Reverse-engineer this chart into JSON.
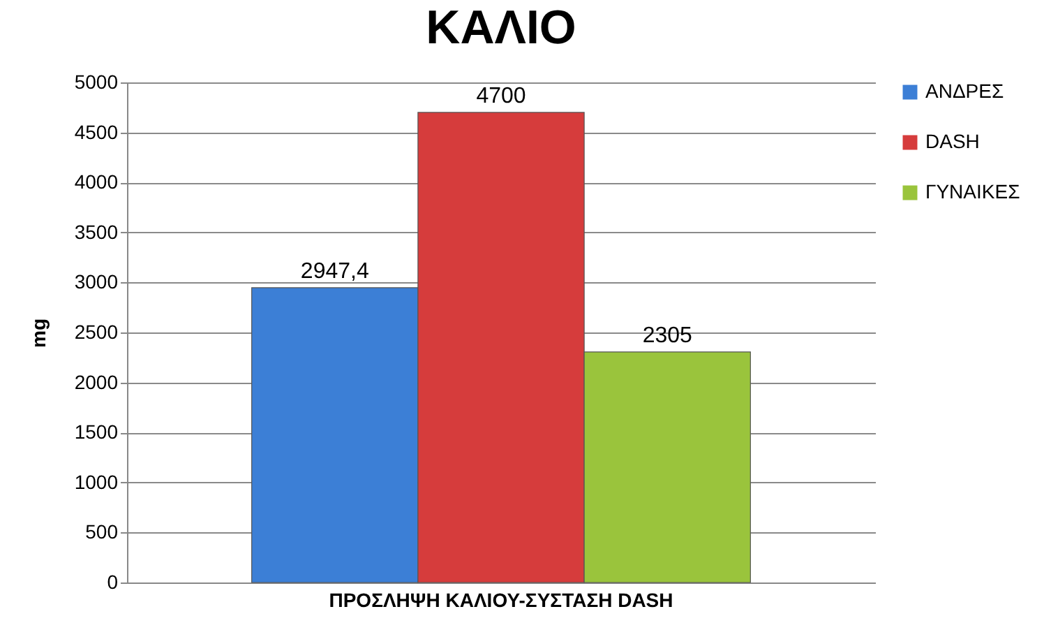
{
  "chart_data": {
    "type": "bar",
    "title": "ΚΑΛΙΟ",
    "ylabel": "mg",
    "categories": [
      "ΠΡΟΣΛΗΨΗ ΚΑΛΙΟΥ-ΣΥΣΤΑΣΗ DASH"
    ],
    "series": [
      {
        "name": "ΑΝΔΡΕΣ",
        "color": "#3c7fd6",
        "values": [
          2947.4
        ],
        "value_labels": [
          "2947,4"
        ]
      },
      {
        "name": "DASH",
        "color": "#d63c3c",
        "values": [
          4700
        ],
        "value_labels": [
          "4700"
        ]
      },
      {
        "name": "ΓΥΝΑΙΚΕΣ",
        "color": "#9ac43c",
        "values": [
          2305
        ],
        "value_labels": [
          "2305"
        ]
      }
    ],
    "ylim": [
      0,
      5000
    ],
    "yticks": [
      0,
      500,
      1000,
      1500,
      2000,
      2500,
      3000,
      3500,
      4000,
      4500,
      5000
    ],
    "grid": "y",
    "legend": "right"
  }
}
